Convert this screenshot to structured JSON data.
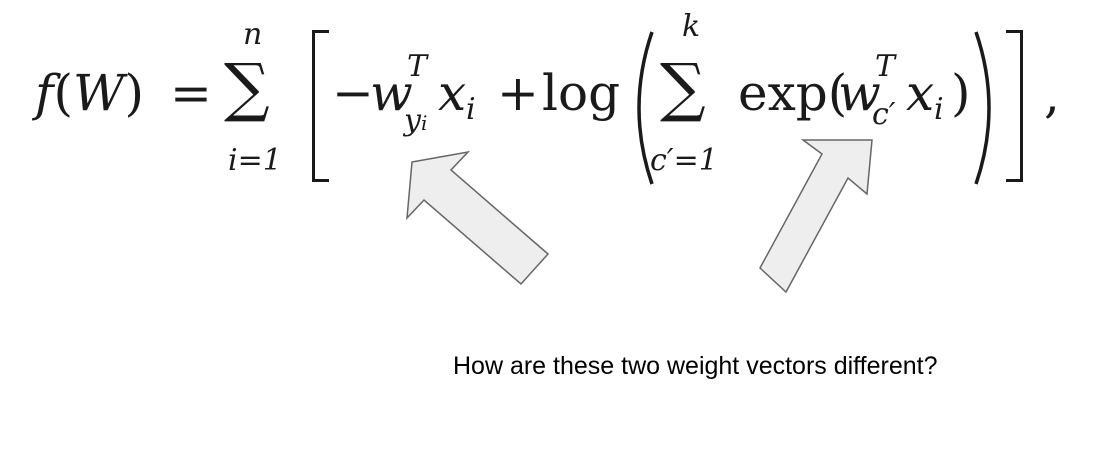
{
  "formula": {
    "f": "f",
    "lparen1": "(",
    "W": "W",
    "rparen1": ")",
    "equals": "=",
    "sum_symbol": "∑",
    "sum1_upper": "n",
    "sum1_lower": "i=1",
    "minus": "−",
    "w1": "w",
    "w1_sup": "T",
    "w1_sub": "y",
    "w1_sub_sub": "i",
    "x1": "x",
    "x1_sub": "i",
    "plus": "+",
    "log": "log",
    "sum2_upper": "k",
    "sum2_lower": "c′=1",
    "exp": "exp(",
    "w2": "w",
    "w2_sup": "T",
    "w2_sub": "c′",
    "x2": "x",
    "x2_sub": "i",
    "close_exp": ")",
    "comma": ","
  },
  "caption": "How are these two weight vectors different?",
  "colors": {
    "arrow_fill": "#eeeeee",
    "arrow_stroke": "#666666",
    "text": "#1a1a1a"
  }
}
